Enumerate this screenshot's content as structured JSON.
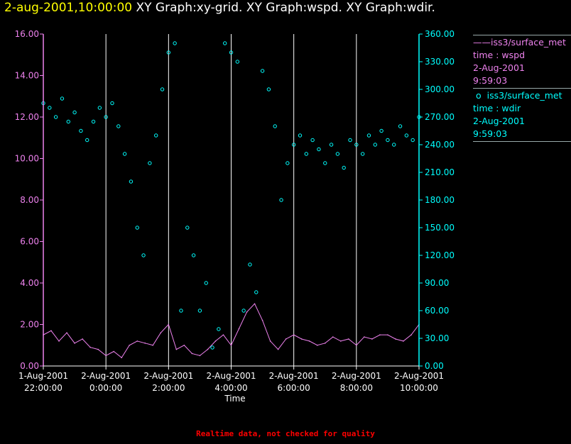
{
  "title": {
    "timestamp": "2-aug-2001,10:00:00",
    "graphs": "XY Graph:xy-grid.  XY Graph:wspd.  XY Graph:wdir."
  },
  "footer": "Realtime data, not checked for quality",
  "legend": [
    {
      "marker": "——",
      "source": "iss3/surface_met",
      "var": "time : wspd",
      "date": "2-Aug-2001",
      "time": "9:59:03"
    },
    {
      "marker": "o",
      "source": "iss3/surface_met",
      "var": "time : wdir",
      "date": "2-Aug-2001",
      "time": "9:59:03"
    }
  ],
  "colors": {
    "background": "#000000",
    "wspd": "#ee82ee",
    "wdir": "#00ffff",
    "grid": "#ffffff",
    "timestamp": "#ffff00",
    "footer": "#ff0000"
  },
  "chart_data": {
    "type": "line",
    "xlabel": "Time",
    "x_range": [
      "2001-08-01 22:00",
      "2001-08-02 10:00"
    ],
    "x_ticks": [
      {
        "date": "1-Aug-2001",
        "time": "22:00:00"
      },
      {
        "date": "2-Aug-2001",
        "time": "0:00:00"
      },
      {
        "date": "2-Aug-2001",
        "time": "2:00:00"
      },
      {
        "date": "2-Aug-2001",
        "time": "4:00:00"
      },
      {
        "date": "2-Aug-2001",
        "time": "6:00:00"
      },
      {
        "date": "2-Aug-2001",
        "time": "8:00:00"
      },
      {
        "date": "2-Aug-2001",
        "time": "10:00:00"
      }
    ],
    "y_left": {
      "series": "wspd",
      "range": [
        0,
        16
      ],
      "ticks": [
        "0.00",
        "2.00",
        "4.00",
        "6.00",
        "8.00",
        "10.00",
        "12.00",
        "14.00",
        "16.00"
      ]
    },
    "y_right": {
      "series": "wdir",
      "range": [
        0,
        360
      ],
      "ticks": [
        "0.00",
        "30.00",
        "60.00",
        "90.00",
        "120.00",
        "150.00",
        "180.00",
        "210.00",
        "240.00",
        "270.00",
        "300.00",
        "330.00",
        "360.00"
      ]
    },
    "grid": {
      "vertical": true,
      "horizontal": false
    },
    "series": [
      {
        "name": "wspd",
        "style": "line",
        "axis": "left",
        "hours": [
          0,
          0.25,
          0.5,
          0.75,
          1,
          1.25,
          1.5,
          1.75,
          2,
          2.25,
          2.5,
          2.75,
          3,
          3.25,
          3.5,
          3.75,
          4,
          4.25,
          4.5,
          4.75,
          5,
          5.25,
          5.5,
          5.75,
          6,
          6.25,
          6.5,
          6.75,
          7,
          7.25,
          7.5,
          7.75,
          8,
          8.25,
          8.5,
          8.75,
          9,
          9.25,
          9.5,
          9.75,
          10,
          10.25,
          10.5,
          10.75,
          11,
          11.25,
          11.5,
          11.75,
          12
        ],
        "values": [
          1.5,
          1.7,
          1.2,
          1.6,
          1.1,
          1.3,
          0.9,
          0.8,
          0.5,
          0.7,
          0.4,
          1.0,
          1.2,
          1.1,
          1.0,
          1.6,
          2.0,
          0.8,
          1.0,
          0.6,
          0.5,
          0.8,
          1.2,
          1.5,
          1.0,
          1.8,
          2.6,
          3.0,
          2.2,
          1.2,
          0.8,
          1.3,
          1.5,
          1.3,
          1.2,
          1.0,
          1.1,
          1.4,
          1.2,
          1.3,
          1.0,
          1.4,
          1.3,
          1.5,
          1.5,
          1.3,
          1.2,
          1.5,
          2.0
        ]
      },
      {
        "name": "wdir",
        "style": "markers",
        "axis": "right",
        "hours": [
          0,
          0.2,
          0.4,
          0.6,
          0.8,
          1.0,
          1.2,
          1.4,
          1.6,
          1.8,
          2.0,
          2.2,
          2.4,
          2.6,
          2.8,
          3.0,
          3.2,
          3.4,
          3.6,
          3.8,
          4.0,
          4.2,
          4.4,
          4.6,
          4.8,
          5.0,
          5.2,
          5.4,
          5.6,
          5.8,
          6.0,
          6.2,
          6.4,
          6.6,
          6.8,
          7.0,
          7.2,
          7.4,
          7.6,
          7.8,
          8.0,
          8.2,
          8.4,
          8.6,
          8.8,
          9.0,
          9.2,
          9.4,
          9.6,
          9.8,
          10.0,
          10.2,
          10.4,
          10.6,
          10.8,
          11.0,
          11.2,
          11.4,
          11.6,
          11.8,
          12.0
        ],
        "values": [
          285,
          280,
          270,
          290,
          265,
          275,
          255,
          245,
          265,
          280,
          270,
          285,
          260,
          230,
          200,
          150,
          120,
          220,
          250,
          300,
          340,
          350,
          60,
          150,
          120,
          60,
          90,
          20,
          40,
          350,
          340,
          330,
          60,
          110,
          80,
          320,
          300,
          260,
          180,
          220,
          240,
          250,
          230,
          245,
          235,
          220,
          240,
          230,
          215,
          245,
          240,
          230,
          250,
          240,
          255,
          245,
          240,
          260,
          250,
          245,
          270
        ]
      }
    ]
  }
}
